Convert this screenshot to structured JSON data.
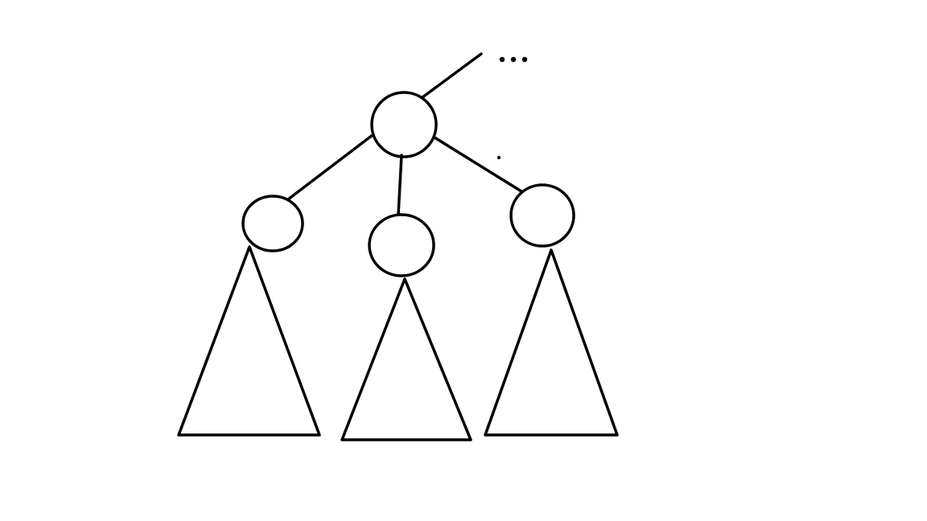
{
  "diagram": {
    "type": "tree",
    "background_color": "#ffffff",
    "line_color": "#000000",
    "nodes": [
      {
        "id": "parent-node",
        "shape": "circle"
      },
      {
        "id": "left-child-node",
        "shape": "circle"
      },
      {
        "id": "middle-child-node",
        "shape": "circle"
      },
      {
        "id": "right-child-node",
        "shape": "circle"
      }
    ],
    "subtrees": [
      {
        "id": "left-subtree",
        "shape": "triangle",
        "root": "left-child-node"
      },
      {
        "id": "middle-subtree",
        "shape": "triangle",
        "root": "middle-child-node"
      },
      {
        "id": "right-subtree",
        "shape": "triangle",
        "root": "right-child-node"
      }
    ],
    "edges": [
      {
        "from": "parent-node",
        "to": "ancestor-continuation"
      },
      {
        "from": "parent-node",
        "to": "left-child-node"
      },
      {
        "from": "parent-node",
        "to": "middle-child-node"
      },
      {
        "from": "parent-node",
        "to": "right-child-node"
      }
    ],
    "continuation_marker": "ellipsis-dots"
  }
}
